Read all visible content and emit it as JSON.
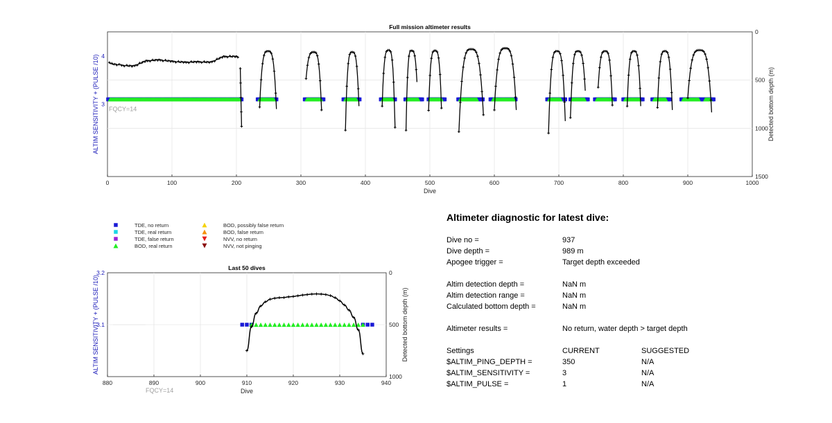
{
  "chart_data": [
    {
      "type": "scatter",
      "title": "Full mission altimeter results",
      "xlabel": "Dive",
      "ylabel": "ALTIM SENSITIVITY + (PULSE /10)",
      "ylabel_right": "Detected bottom depth (m)",
      "annotation": "FQCY=14",
      "xlim": [
        0,
        1000
      ],
      "ylim": [
        1.5,
        4.5
      ],
      "ylim_right": [
        0,
        1500
      ],
      "xticks": [
        0,
        100,
        200,
        300,
        400,
        500,
        600,
        700,
        800,
        900,
        1000
      ],
      "yticks": [
        3,
        4
      ],
      "yticks_right": [
        0,
        500,
        1000,
        1500
      ],
      "grid": true,
      "series": [
        {
          "name": "TDE, no return",
          "color": "#1a1ad6",
          "marker": "square",
          "y": 3.1,
          "ranges": [
            [
              1,
              208
            ],
            [
              233,
              262
            ],
            [
              306,
              335
            ],
            [
              366,
              391
            ],
            [
              424,
              446
            ],
            [
              462,
              488
            ],
            [
              498,
              523
            ],
            [
              544,
              582
            ],
            [
              594,
              633
            ],
            [
              682,
              710
            ],
            [
              718,
              745
            ],
            [
              756,
              787
            ],
            [
              800,
              830
            ],
            [
              845,
              872
            ],
            [
              890,
              922
            ],
            [
              924,
              940
            ]
          ]
        },
        {
          "name": "BOD, real return",
          "color": "#22ee22",
          "marker": "triangle",
          "y": 3.1,
          "ranges": [
            [
              4,
              205
            ],
            [
              236,
              258
            ],
            [
              309,
              331
            ],
            [
              369,
              386
            ],
            [
              427,
              442
            ],
            [
              465,
              482
            ],
            [
              500,
              518
            ],
            [
              547,
              573
            ],
            [
              598,
              630
            ],
            [
              685,
              703
            ],
            [
              721,
              740
            ],
            [
              759,
              782
            ],
            [
              803,
              825
            ],
            [
              848,
              866
            ],
            [
              893,
              917
            ],
            [
              927,
              935
            ]
          ]
        },
        {
          "name": "Detected bottom depth",
          "color": "#000000",
          "marker": "plus",
          "axis": "right",
          "segments": [
            {
              "type": "flat",
              "x0": 3,
              "x1": 204,
              "depth_points": [
                [
                  3,
                  325
                ],
                [
                  20,
                  345
                ],
                [
                  40,
                  355
                ],
                [
                  60,
                  300
                ],
                [
                  80,
                  290
                ],
                [
                  100,
                  305
                ],
                [
                  120,
                  315
                ],
                [
                  140,
                  310
                ],
                [
                  160,
                  315
                ],
                [
                  180,
                  255
                ],
                [
                  200,
                  255
                ],
                [
                  204,
                  265
                ]
              ]
            },
            {
              "type": "fall",
              "points": [
                [
                  206,
                  380
                ],
                [
                  208,
                  980
                ]
              ]
            },
            {
              "type": "arch",
              "x0": 236,
              "x1": 262,
              "top": 200,
              "left": 780,
              "right": 800
            },
            {
              "type": "arch",
              "x0": 308,
              "x1": 332,
              "top": 210,
              "left": 485,
              "right": 810
            },
            {
              "type": "arch",
              "x0": 369,
              "x1": 390,
              "top": 210,
              "left": 1020,
              "right": 770
            },
            {
              "type": "arch",
              "x0": 426,
              "x1": 446,
              "top": 190,
              "left": 770,
              "right": 990
            },
            {
              "type": "arch",
              "x0": 463,
              "x1": 480,
              "top": 195,
              "left": 1020,
              "right": 520
            },
            {
              "type": "arch",
              "x0": 498,
              "x1": 518,
              "top": 195,
              "left": 815,
              "right": 790
            },
            {
              "type": "arch",
              "x0": 545,
              "x1": 583,
              "top": 180,
              "left": 1035,
              "right": 860
            },
            {
              "type": "arch",
              "x0": 600,
              "x1": 634,
              "top": 170,
              "left": 810,
              "right": 810
            },
            {
              "type": "arch",
              "x0": 684,
              "x1": 710,
              "top": 200,
              "left": 1050,
              "right": 925
            },
            {
              "type": "arch",
              "x0": 718,
              "x1": 741,
              "top": 200,
              "left": 890,
              "right": 610
            },
            {
              "type": "arch",
              "x0": 761,
              "x1": 783,
              "top": 200,
              "left": 575,
              "right": 760
            },
            {
              "type": "arch",
              "x0": 806,
              "x1": 827,
              "top": 200,
              "left": 770,
              "right": 770
            },
            {
              "type": "arch",
              "x0": 853,
              "x1": 876,
              "top": 200,
              "left": 785,
              "right": 810
            },
            {
              "type": "arch",
              "x0": 900,
              "x1": 937,
              "top": 190,
              "left": 685,
              "right": 835
            }
          ]
        }
      ]
    },
    {
      "type": "scatter",
      "title": "Last 50 dives",
      "xlabel": "Dive",
      "ylabel": "ALTIM SENSITIVITY + (PULSE /10)",
      "ylabel_right": "Detected bottom depth (m)",
      "annotation": "FQCY=14",
      "xlim": [
        880,
        940
      ],
      "ylim": [
        3.0,
        3.2
      ],
      "ylim_right": [
        0,
        1000
      ],
      "xticks": [
        880,
        890,
        900,
        910,
        920,
        930,
        940
      ],
      "yticks": [
        3.1,
        3.2
      ],
      "yticks_right": [
        0,
        500,
        1000
      ],
      "grid": true,
      "series": [
        {
          "name": "TDE, no return",
          "color": "#1a1ad6",
          "marker": "square",
          "y": 3.1,
          "x": [
            909,
            910,
            911,
            935,
            936,
            937
          ]
        },
        {
          "name": "BOD, real return",
          "color": "#22ee22",
          "marker": "triangle",
          "y": 3.1,
          "x": [
            911,
            912,
            913,
            914,
            915,
            916,
            917,
            918,
            919,
            920,
            921,
            922,
            923,
            924,
            925,
            926,
            927,
            928,
            929,
            930,
            931,
            932,
            933,
            934,
            935
          ]
        },
        {
          "name": "Detected bottom depth",
          "color": "#000000",
          "marker": "plus",
          "axis": "right",
          "x": [
            910,
            911,
            912,
            913,
            914,
            915,
            916,
            917,
            918,
            919,
            920,
            921,
            922,
            923,
            924,
            925,
            926,
            927,
            928,
            929,
            930,
            931,
            932,
            933,
            934,
            935
          ],
          "depth": [
            750,
            520,
            390,
            320,
            280,
            255,
            245,
            240,
            238,
            232,
            228,
            222,
            215,
            210,
            205,
            203,
            205,
            210,
            220,
            240,
            270,
            310,
            360,
            430,
            550,
            780
          ]
        }
      ]
    }
  ],
  "legend": {
    "items": [
      {
        "label": "TDE, no return",
        "color": "#1a1ad6",
        "marker": "square"
      },
      {
        "label": "TDE, real return",
        "color": "#19d7e6",
        "marker": "square"
      },
      {
        "label": "TDE, false return",
        "color": "#9b22d8",
        "marker": "square"
      },
      {
        "label": "BOD, real return",
        "color": "#22ee22",
        "marker": "triangle-up"
      },
      {
        "label": "BOD, possibly false return",
        "color": "#f5d20a",
        "marker": "triangle-up"
      },
      {
        "label": "BOD, false return",
        "color": "#f5900a",
        "marker": "triangle-up"
      },
      {
        "label": "NVV, no return",
        "color": "#e61c1c",
        "marker": "triangle-down"
      },
      {
        "label": "NVV, not pinging",
        "color": "#8b1010",
        "marker": "triangle-down"
      }
    ]
  },
  "diagnostic": {
    "title": "Altimeter diagnostic for latest dive:",
    "dive_no_label": "Dive no =",
    "dive_no_value": "937",
    "dive_depth_label": "Dive depth =",
    "dive_depth_value": "989 m",
    "apogee_label": "Apogee trigger =",
    "apogee_value": "Target depth exceeded",
    "det_depth_label": "Altim detection depth =",
    "det_depth_value": "NaN m",
    "det_range_label": "Altim detection range =",
    "det_range_value": "NaN m",
    "calc_depth_label": "Calculated bottom depth =",
    "calc_depth_value": "NaN m",
    "results_label": "Altimeter results =",
    "results_value": "No return, water depth > target depth",
    "settings_label": "Settings",
    "current_label": "CURRENT",
    "suggested_label": "SUGGESTED",
    "ping_label": "$ALTIM_PING_DEPTH =",
    "ping_current": "350",
    "ping_suggested": "N/A",
    "sens_label": "$ALTIM_SENSITIVITY =",
    "sens_current": "3",
    "sens_suggested": "N/A",
    "pulse_label": "$ALTIM_PULSE =",
    "pulse_current": "1",
    "pulse_suggested": "N/A"
  }
}
